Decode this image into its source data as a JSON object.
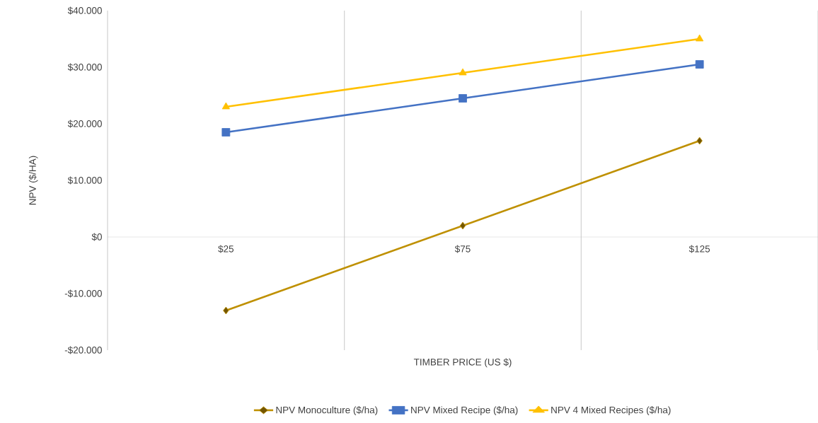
{
  "chart_data": {
    "type": "line",
    "xlabel": "TIMBER PRICE (US $)",
    "ylabel": "NPV ($/HA)",
    "categories": [
      "$25",
      "$75",
      "$125"
    ],
    "series": [
      {
        "name": "NPV Monoculture ($/ha)",
        "color": "#bf9000",
        "marker": "diamond",
        "values": [
          -13000,
          2000,
          17000
        ]
      },
      {
        "name": "NPV Mixed Recipe ($/ha)",
        "color": "#4472c4",
        "marker": "square",
        "values": [
          18500,
          24500,
          30500
        ]
      },
      {
        "name": "NPV 4 Mixed Recipes ($/ha)",
        "color": "#ffc000",
        "marker": "triangle",
        "values": [
          23000,
          29000,
          35000
        ]
      }
    ],
    "ylim": [
      -20000,
      40000
    ],
    "yticks": [
      {
        "value": -20000,
        "label": "-$20.000"
      },
      {
        "value": -10000,
        "label": "-$10.000"
      },
      {
        "value": 0,
        "label": "$0"
      },
      {
        "value": 10000,
        "label": "$10.000"
      },
      {
        "value": 20000,
        "label": "$20.000"
      },
      {
        "value": 30000,
        "label": "$30.000"
      },
      {
        "value": 40000,
        "label": "$40.000"
      }
    ],
    "grid": "x",
    "legend": "bottom"
  }
}
